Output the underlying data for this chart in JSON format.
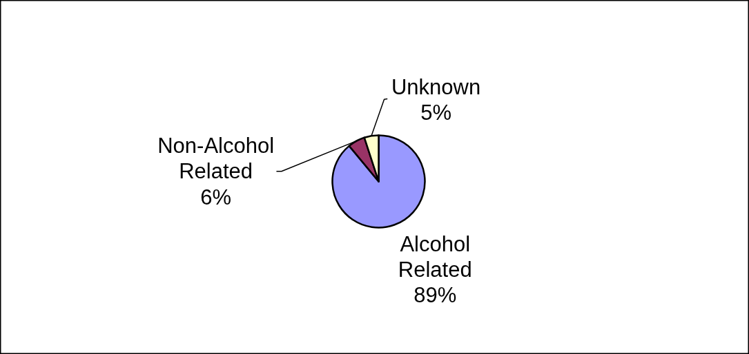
{
  "chart_data": {
    "type": "pie",
    "categories": [
      "Alcohol Related",
      "Non-Alcohol Related",
      "Unknown"
    ],
    "values": [
      89,
      6,
      5
    ],
    "colors": [
      "#9999ff",
      "#993366",
      "#ffffcc"
    ],
    "value_labels": [
      "89%",
      "6%",
      "5%"
    ]
  }
}
